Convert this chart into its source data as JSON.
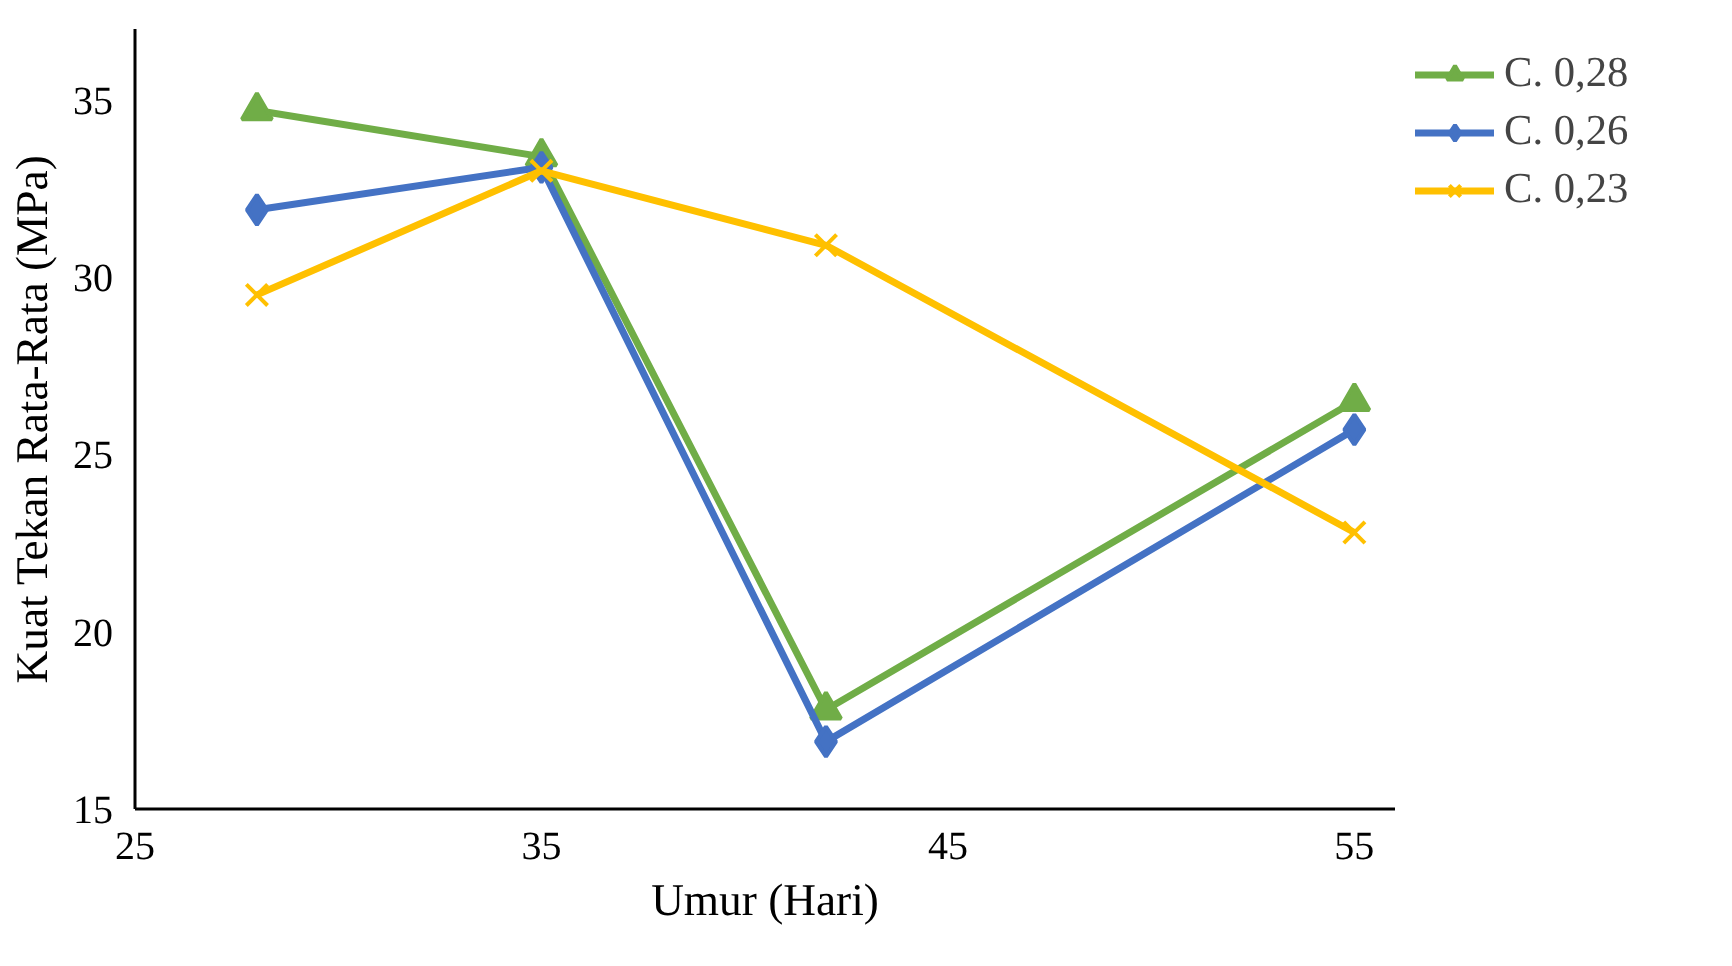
{
  "chart_data": {
    "type": "line",
    "xlabel": "Umur (Hari)",
    "ylabel": "Kuat Tekan Rata-Rata (MPa)",
    "x": [
      28,
      35,
      42,
      55
    ],
    "series": [
      {
        "name": "C. 0,28",
        "color": "#70ad47",
        "marker": "triangle",
        "values": [
          34.7,
          33.4,
          17.8,
          26.5
        ]
      },
      {
        "name": "C. 0,26",
        "color": "#4472c4",
        "marker": "diamond",
        "values": [
          31.9,
          33.1,
          16.9,
          25.7
        ]
      },
      {
        "name": "C. 0,23",
        "color": "#ffc000",
        "marker": "cross",
        "values": [
          29.5,
          33.0,
          30.9,
          22.8
        ]
      }
    ],
    "xlim": [
      25,
      56
    ],
    "xticks": [
      25,
      35,
      45,
      55
    ],
    "ylim": [
      15,
      37
    ],
    "yticks": [
      15,
      20,
      25,
      30,
      35
    ],
    "grid": false,
    "legend": "right",
    "line_style": "solid"
  }
}
